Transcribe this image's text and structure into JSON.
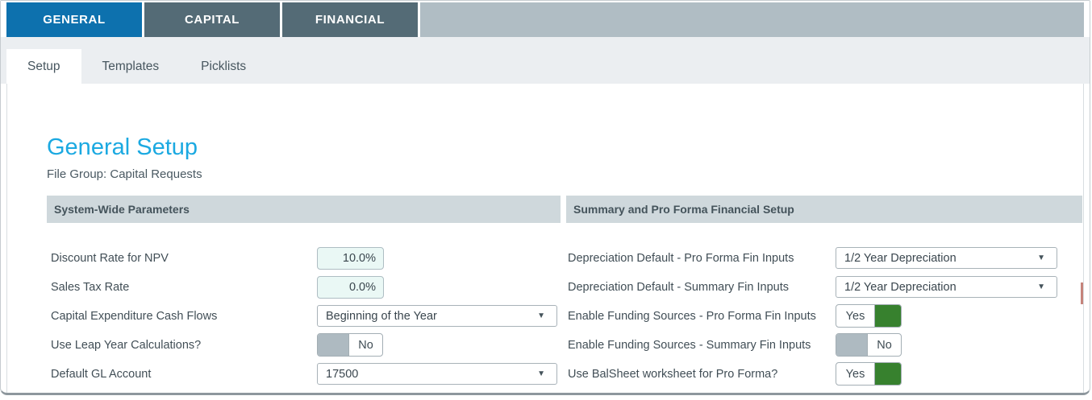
{
  "main_tabs": [
    {
      "label": "GENERAL",
      "active": true
    },
    {
      "label": "CAPITAL",
      "active": false
    },
    {
      "label": "FINANCIAL",
      "active": false
    }
  ],
  "sub_tabs": [
    {
      "label": "Setup",
      "active": true
    },
    {
      "label": "Templates",
      "active": false
    },
    {
      "label": "Picklists",
      "active": false
    }
  ],
  "page": {
    "title": "General Setup",
    "subtitle": "File Group: Capital Requests"
  },
  "sections": [
    {
      "header": "System-Wide Parameters",
      "rows": [
        {
          "label": "Discount Rate for NPV",
          "type": "input",
          "value": "10.0%"
        },
        {
          "label": "Sales Tax Rate",
          "type": "input",
          "value": "0.0%"
        },
        {
          "label": "Capital Expenditure Cash Flows",
          "type": "select",
          "value": "Beginning of the Year"
        },
        {
          "label": "Use Leap Year Calculations?",
          "type": "toggle",
          "value": "No"
        },
        {
          "label": "Default GL Account",
          "type": "select",
          "value": "17500"
        }
      ]
    },
    {
      "header": "Summary and Pro Forma Financial Setup",
      "rows": [
        {
          "label": "Depreciation Default - Pro Forma Fin Inputs",
          "type": "select",
          "value": "1/2 Year Depreciation"
        },
        {
          "label": "Depreciation Default - Summary Fin Inputs",
          "type": "select",
          "value": "1/2 Year Depreciation"
        },
        {
          "label": "Enable Funding Sources - Pro Forma Fin Inputs",
          "type": "toggle",
          "value": "Yes"
        },
        {
          "label": "Enable Funding Sources - Summary Fin Inputs",
          "type": "toggle",
          "value": "No"
        },
        {
          "label": "Use BalSheet worksheet for Pro Forma?",
          "type": "toggle",
          "value": "Yes"
        }
      ]
    }
  ],
  "icons": {
    "dropdown_arrow": "▼"
  },
  "colors": {
    "active_tab_blue": "#0D71AE",
    "inactive_tab_slate": "#546B76",
    "tabbar_filler_gray": "#B0BDC4",
    "subtab_band_gray": "#EBEEF1",
    "section_header_gray": "#CFD8DC",
    "title_cyan": "#1BA9E1",
    "toggle_green": "#37812E",
    "toggle_off_gray": "#AEBAC1",
    "input_mint": "#EAF8F5"
  }
}
